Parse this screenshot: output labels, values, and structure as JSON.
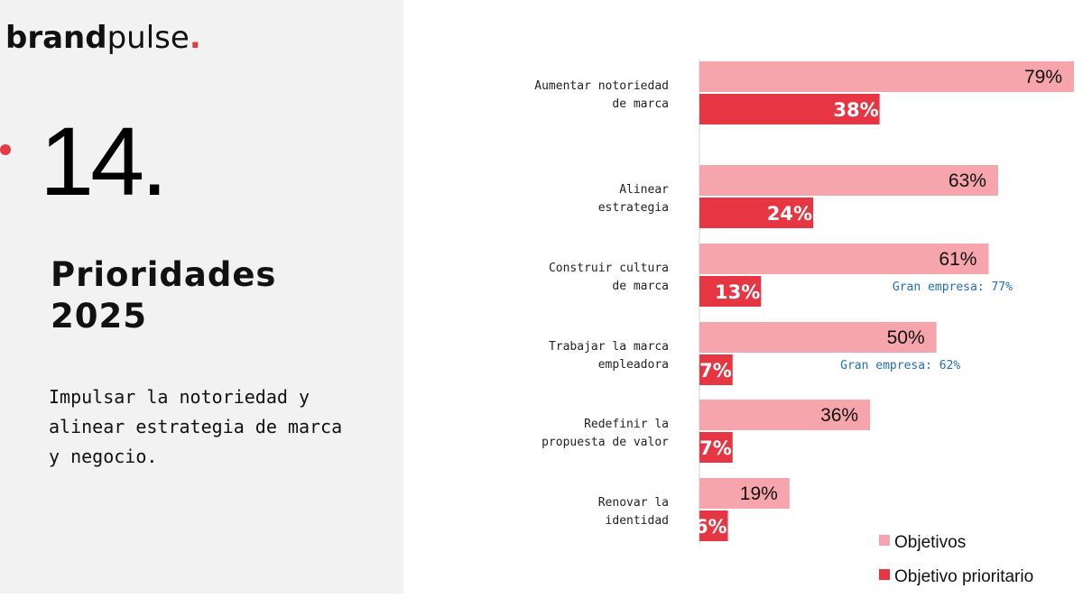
{
  "brand": {
    "name_bold": "brand",
    "name_light": "pulse",
    "dot": "."
  },
  "slide": {
    "number": "14.",
    "title": "Prioridades 2025",
    "subtitle": "Impulsar la notoriedad y alinear estrategia de marca y negocio."
  },
  "colors": {
    "accent": "#e63946",
    "objetivos": "#f7a5ac",
    "prioritario": "#e63644",
    "note": "#1f6fbf",
    "panel": "#f2f2f2"
  },
  "chart_data": {
    "type": "bar",
    "orientation": "horizontal",
    "xlim": [
      0,
      79
    ],
    "categories": [
      [
        "Aumentar notoriedad",
        "de marca"
      ],
      [
        "Alinear",
        "estrategia"
      ],
      [
        "Construir cultura",
        "de marca"
      ],
      [
        "Trabajar la marca",
        "empleadora"
      ],
      [
        "Redefinir la",
        "propuesta de valor"
      ],
      [
        "Renovar la",
        "identidad"
      ]
    ],
    "series": [
      {
        "name": "Objetivos",
        "values": [
          79,
          63,
          61,
          50,
          36,
          19
        ],
        "labels": [
          "79%",
          "63%",
          "61%",
          "50%",
          "36%",
          "19%"
        ]
      },
      {
        "name": "Objetivo prioritario",
        "values": [
          38,
          24,
          13,
          7,
          7,
          6
        ],
        "labels": [
          "38%",
          "24%",
          "13%",
          "7%",
          "7%",
          "6%"
        ]
      }
    ],
    "annotations": [
      {
        "category_index": 2,
        "text": "Gran empresa: 77%"
      },
      {
        "category_index": 3,
        "text": "Gran empresa: 62%"
      }
    ],
    "legend": {
      "position": "bottom-right",
      "items": [
        "Objetivos",
        "Objetivo prioritario"
      ]
    },
    "grid": false
  }
}
